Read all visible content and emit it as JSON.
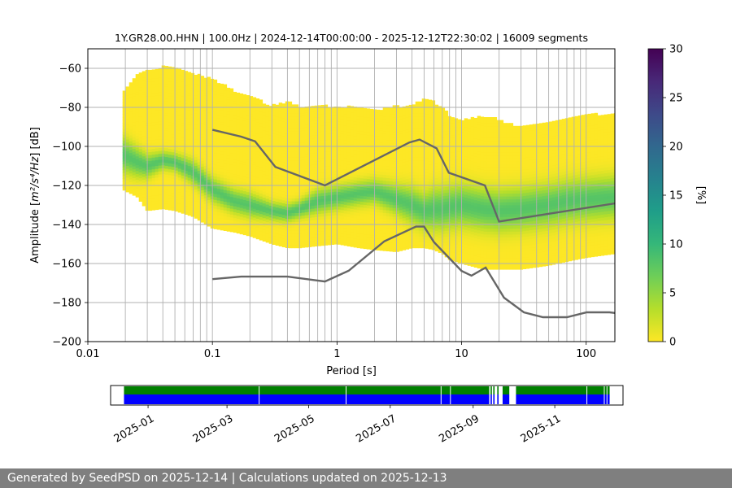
{
  "chart_data": {
    "type": "heatmap",
    "title": "1Y.GR28.00.HHN | 100.0Hz | 2024-12-14T00:00:00 - 2025-12-12T22:30:02 | 16009 segments",
    "xlabel": "Period [s]",
    "ylabel_prefix": "Amplitude [",
    "ylabel_math": "m²/s⁴/Hz",
    "ylabel_suffix": "] [dB]",
    "x_scale": "log",
    "xlim": [
      0.01,
      170
    ],
    "ylim": [
      -200,
      -50
    ],
    "x_ticks": [
      0.01,
      0.1,
      1,
      10,
      100
    ],
    "x_tick_labels": [
      "0.01",
      "0.1",
      "1",
      "10",
      "100"
    ],
    "y_ticks": [
      -200,
      -180,
      -160,
      -140,
      -120,
      -100,
      -80,
      -60
    ],
    "y_tick_labels": [
      "−200",
      "−180",
      "−160",
      "−140",
      "−120",
      "−100",
      "−80",
      "−60"
    ],
    "grid": "on",
    "colormap": "viridis_r",
    "colorbar": {
      "label": "[%]",
      "range": [
        0,
        30
      ],
      "ticks": [
        0,
        5,
        10,
        15,
        20,
        25,
        30
      ],
      "tick_labels": [
        "0",
        "5",
        "10",
        "15",
        "20",
        "25",
        "30"
      ],
      "colors": [
        "#fde725",
        "#b5de2b",
        "#6ece58",
        "#35b779",
        "#1f9e89",
        "#26828e",
        "#31688e",
        "#3e4989",
        "#482878",
        "#440154"
      ]
    },
    "period_band": {
      "periods": [
        0.019,
        0.025,
        0.03,
        0.04,
        0.05,
        0.07,
        0.1,
        0.15,
        0.2,
        0.3,
        0.4,
        0.5,
        0.7,
        1,
        1.5,
        2,
        3,
        4,
        5,
        6,
        7,
        8,
        10,
        15,
        20,
        30,
        50,
        70,
        100,
        170
      ],
      "upper_db": [
        -74,
        -63,
        -62,
        -60,
        -60,
        -63,
        -66,
        -72,
        -75,
        -80,
        -78,
        -80,
        -80,
        -80,
        -81,
        -82,
        -80,
        -80,
        -76,
        -78,
        -80,
        -85,
        -87,
        -85,
        -87,
        -91,
        -88,
        -86,
        -85,
        -83
      ],
      "lower_db": [
        -122,
        -126,
        -133,
        -132,
        -133,
        -136,
        -142,
        -144,
        -146,
        -150,
        -152,
        -152,
        -151,
        -150,
        -152,
        -153,
        -154,
        -152,
        -152,
        -153,
        -155,
        -158,
        -160,
        -163,
        -163,
        -163,
        -161,
        -159,
        -157,
        -155
      ],
      "mode_db": [
        -104,
        -108,
        -110,
        -107,
        -108,
        -113,
        -122,
        -128,
        -130,
        -133,
        -134,
        -132,
        -128,
        -126,
        -124,
        -123,
        -127,
        -130,
        -133,
        -132,
        -132,
        -131,
        -130,
        -132,
        -133,
        -132,
        -130,
        -128,
        -127,
        -126
      ],
      "mode_spread_db": [
        6,
        5,
        4,
        3,
        3,
        4,
        4,
        4,
        4,
        3,
        3,
        3,
        4,
        4,
        4,
        4,
        5,
        6,
        6,
        7,
        7,
        7,
        7,
        7,
        7,
        7,
        7,
        7,
        7,
        7
      ]
    },
    "nhnm": {
      "periods": [
        0.1,
        0.17,
        0.22,
        0.32,
        0.8,
        3.8,
        4.6,
        6.3,
        7.9,
        15.4,
        20,
        354.8
      ],
      "db": [
        -91.5,
        -95,
        -97.4,
        -110.5,
        -120,
        -98,
        -96.5,
        -101,
        -113.5,
        -120,
        -138.5,
        -126
      ]
    },
    "nlnm": {
      "periods": [
        0.1,
        0.17,
        0.4,
        0.8,
        1.24,
        2.4,
        4.3,
        5,
        6,
        10,
        12,
        15.6,
        21.9,
        31.6,
        45,
        70,
        101,
        154,
        328
      ],
      "db": [
        -168,
        -166.7,
        -166.7,
        -169.2,
        -163.7,
        -148.6,
        -141.1,
        -141.1,
        -149,
        -163.8,
        -166.2,
        -162.1,
        -177.5,
        -185,
        -187.5,
        -187.5,
        -185,
        -185,
        -187.5
      ]
    },
    "vertical_lines_periods": [
      0.02,
      0.03,
      0.04,
      0.05,
      0.06,
      0.07,
      0.08,
      0.09,
      0.1,
      0.2,
      0.3,
      0.4,
      0.5,
      0.6,
      0.7,
      0.8,
      0.9,
      1,
      2,
      3,
      4,
      5,
      6,
      7,
      8,
      9,
      10,
      20,
      30,
      40,
      50,
      60,
      70,
      80,
      90,
      100
    ],
    "availability": {
      "date_ticks": [
        "2025-01",
        "2025-03",
        "2025-05",
        "2025-07",
        "2025-09",
        "2025-11"
      ],
      "date_range": [
        "2024-12-14",
        "2025-12-12"
      ],
      "axis_range": [
        "2024-12-04",
        "2025-12-22"
      ],
      "green_color": "#008000",
      "blue_color": "#0000ff",
      "green_segments": [
        [
          "2024-12-14",
          "2025-09-13"
        ],
        [
          "2025-09-14",
          "2025-09-15"
        ],
        [
          "2025-09-16",
          "2025-09-17"
        ],
        [
          "2025-09-19",
          "2025-09-20"
        ],
        [
          "2025-09-23",
          "2025-09-28"
        ],
        [
          "2025-10-03",
          "2025-12-12"
        ]
      ],
      "blue_segments": [
        [
          "2024-12-14",
          "2025-09-13"
        ],
        [
          "2025-09-14",
          "2025-09-15"
        ],
        [
          "2025-09-16",
          "2025-09-17"
        ],
        [
          "2025-09-19",
          "2025-09-20"
        ],
        [
          "2025-09-23",
          "2025-09-28"
        ],
        [
          "2025-10-03",
          "2025-12-12"
        ]
      ],
      "gap_ticks": [
        "2025-03-25",
        "2025-05-29",
        "2025-08-08",
        "2025-08-15",
        "2025-11-25",
        "2025-12-08",
        "2025-12-10"
      ]
    }
  },
  "footer": {
    "text": "Generated by SeedPSD on 2025-12-14 | Calculations updated on 2025-12-13"
  }
}
